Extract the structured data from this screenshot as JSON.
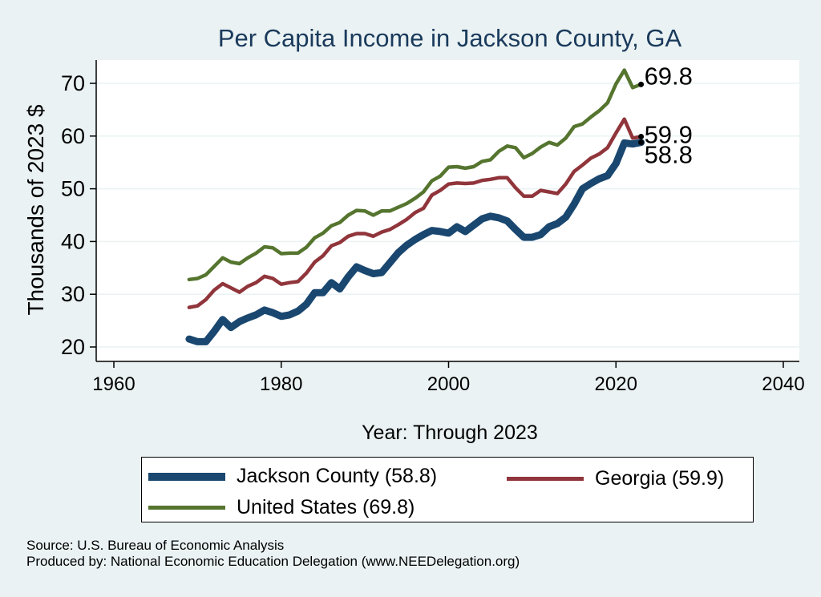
{
  "chart_data": {
    "type": "line",
    "title": "Per Capita Income in Jackson County, GA",
    "xlabel": "Year: Through 2023",
    "ylabel": "Thousands of 2023 $",
    "xlim": [
      1960,
      2040
    ],
    "ylim": [
      18,
      75
    ],
    "xticks": [
      1960,
      1980,
      2000,
      2020,
      2040
    ],
    "yticks": [
      20,
      30,
      40,
      50,
      60,
      70
    ],
    "grid": true,
    "legend_position": "bottom",
    "x": [
      1969,
      1970,
      1971,
      1972,
      1973,
      1974,
      1975,
      1976,
      1977,
      1978,
      1979,
      1980,
      1981,
      1982,
      1983,
      1984,
      1985,
      1986,
      1987,
      1988,
      1989,
      1990,
      1991,
      1992,
      1993,
      1994,
      1995,
      1996,
      1997,
      1998,
      1999,
      2000,
      2001,
      2002,
      2003,
      2004,
      2005,
      2006,
      2007,
      2008,
      2009,
      2010,
      2011,
      2012,
      2013,
      2014,
      2015,
      2016,
      2017,
      2018,
      2019,
      2020,
      2021,
      2022,
      2023
    ],
    "series": [
      {
        "name": "Jackson County",
        "legend_label": "Jackson County (58.8)",
        "color": "#1a476f",
        "end_label": "58.8",
        "values": [
          21.5,
          21.0,
          21.0,
          23.0,
          25.2,
          23.7,
          24.8,
          25.5,
          26.1,
          27.0,
          26.5,
          25.8,
          26.1,
          26.8,
          28.1,
          30.3,
          30.3,
          32.2,
          31.0,
          33.3,
          35.2,
          34.5,
          33.9,
          34.1,
          36.0,
          37.9,
          39.3,
          40.4,
          41.3,
          42.1,
          41.9,
          41.6,
          42.8,
          41.9,
          43.1,
          44.3,
          44.8,
          44.5,
          43.9,
          42.3,
          40.8,
          40.8,
          41.3,
          42.8,
          43.4,
          44.6,
          47.1,
          50.0,
          51.0,
          51.9,
          52.5,
          54.8,
          58.7,
          58.5,
          58.8
        ]
      },
      {
        "name": "Georgia",
        "legend_label": "Georgia (59.9)",
        "color": "#90353b",
        "end_label": "59.9",
        "values": [
          27.5,
          27.8,
          29.0,
          30.8,
          32.0,
          31.2,
          30.4,
          31.5,
          32.2,
          33.4,
          33.0,
          31.9,
          32.2,
          32.4,
          34.0,
          36.1,
          37.3,
          39.2,
          39.8,
          41.0,
          41.5,
          41.5,
          41.0,
          41.8,
          42.3,
          43.2,
          44.2,
          45.5,
          46.3,
          48.8,
          49.7,
          50.9,
          51.1,
          51.0,
          51.1,
          51.6,
          51.8,
          52.1,
          52.1,
          50.2,
          48.6,
          48.6,
          49.7,
          49.4,
          49.1,
          50.9,
          53.3,
          54.5,
          55.8,
          56.6,
          57.8,
          60.6,
          63.2,
          59.6,
          59.9
        ]
      },
      {
        "name": "United States",
        "legend_label": "United States (69.8)",
        "color": "#55752f",
        "end_label": "69.8",
        "values": [
          32.8,
          33.0,
          33.7,
          35.3,
          36.9,
          36.1,
          35.8,
          36.9,
          37.8,
          39.0,
          38.8,
          37.7,
          37.8,
          37.8,
          38.9,
          40.7,
          41.6,
          43.0,
          43.6,
          45.0,
          45.9,
          45.8,
          45.0,
          45.8,
          45.8,
          46.5,
          47.2,
          48.2,
          49.4,
          51.5,
          52.4,
          54.1,
          54.2,
          53.9,
          54.2,
          55.2,
          55.5,
          57.1,
          58.1,
          57.8,
          55.9,
          56.7,
          57.9,
          58.8,
          58.3,
          59.6,
          61.8,
          62.3,
          63.6,
          64.8,
          66.3,
          69.9,
          72.5,
          69.2,
          69.8
        ]
      }
    ]
  },
  "footer": {
    "source": "Source: U.S. Bureau of Economic Analysis",
    "produced_by": "Produced by: National Economic Education Delegation (www.NEEDelegation.org)"
  }
}
